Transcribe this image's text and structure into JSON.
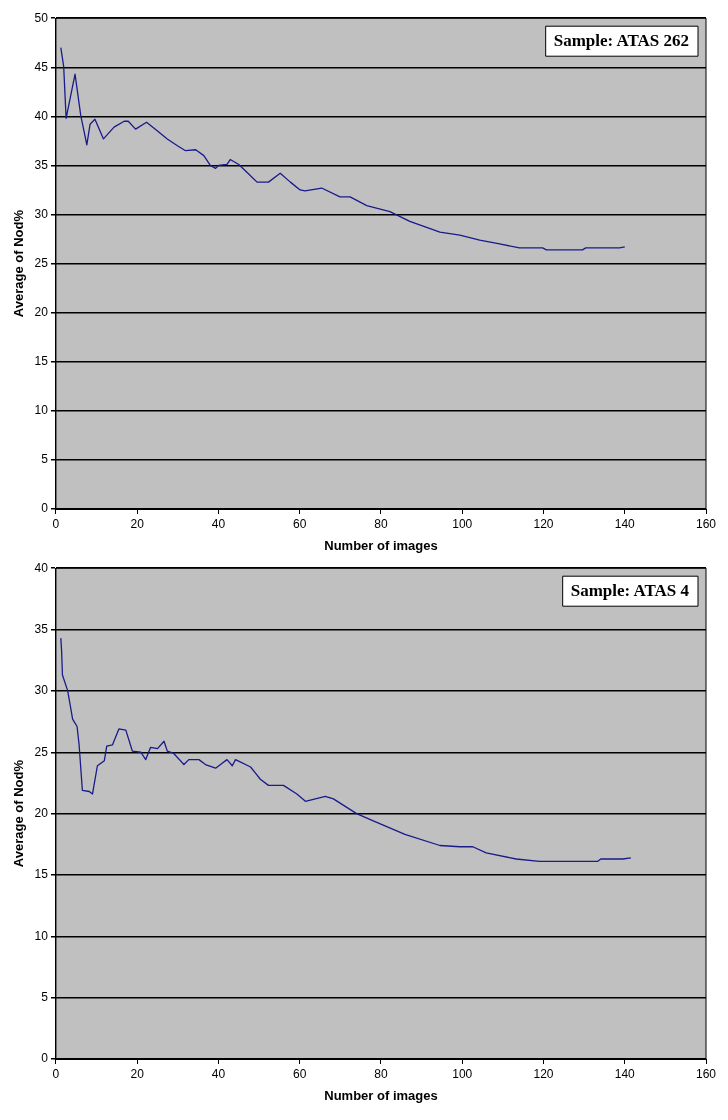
{
  "chart_data": [
    {
      "type": "line",
      "xlabel": "Number of images",
      "ylabel": "Average of Nod%",
      "annotations": [
        "Sample: ATAS 262"
      ],
      "color": "#1a1a8c",
      "marker": "none",
      "grid": "y",
      "xlim": [
        0,
        160
      ],
      "xticks": [
        0,
        20,
        40,
        60,
        80,
        100,
        120,
        140,
        160
      ],
      "ylim": [
        0,
        50
      ],
      "yticks": [
        0,
        5,
        10,
        15,
        20,
        25,
        30,
        35,
        40,
        45,
        50
      ],
      "x": [
        1.2,
        1.9,
        2.5,
        4.7,
        6.1,
        7.6,
        8.4,
        9.6,
        11.7,
        14.3,
        16.8,
        17.8,
        19.6,
        22.3,
        25,
        27.4,
        29.9,
        31.9,
        34.4,
        36.4,
        38,
        39.3,
        40,
        42.1,
        42.9,
        45,
        47,
        49.5,
        52.3,
        55.2,
        57.7,
        60.1,
        61.3,
        65.4,
        69.9,
        72.4,
        76.5,
        82.2,
        87.1,
        94.5,
        99.4,
        104.3,
        109.2,
        114.1,
        119.8,
        120.7,
        129.6,
        130.4,
        138.7,
        140
      ],
      "values": [
        47.0,
        45.1,
        39.8,
        44.3,
        40.1,
        37.1,
        39.2,
        39.7,
        37.7,
        38.9,
        39.5,
        39.5,
        38.7,
        39.4,
        38.5,
        37.7,
        37.0,
        36.5,
        36.6,
        36.0,
        35.0,
        34.7,
        35.0,
        35.1,
        35.6,
        35.1,
        34.3,
        33.3,
        33.3,
        34.2,
        33.3,
        32.5,
        32.4,
        32.7,
        31.8,
        31.8,
        30.9,
        30.3,
        29.3,
        28.2,
        27.9,
        27.4,
        27.0,
        26.6,
        26.6,
        26.4,
        26.4,
        26.6,
        26.6,
        26.7
      ]
    },
    {
      "type": "line",
      "xlabel": "Number of images",
      "ylabel": "Average of Nod%",
      "annotations": [
        "Sample: ATAS 4"
      ],
      "color": "#1a1a8c",
      "marker": "none",
      "grid": "y",
      "xlim": [
        0,
        160
      ],
      "xticks": [
        0,
        20,
        40,
        60,
        80,
        100,
        120,
        140,
        160
      ],
      "ylim": [
        0,
        40
      ],
      "yticks": [
        0,
        5,
        10,
        15,
        20,
        25,
        30,
        35,
        40
      ],
      "x": [
        1.2,
        1.4,
        1.6,
        2.9,
        4.1,
        5.2,
        5.7,
        6.5,
        8.2,
        9.0,
        10.2,
        11.9,
        12.5,
        13.9,
        15.5,
        17.2,
        18.8,
        20.9,
        22.1,
        23.3,
        25,
        26.6,
        27.4,
        29,
        31.5,
        32.7,
        35.2,
        36.8,
        39.3,
        42.1,
        43.4,
        44.2,
        47.9,
        50.3,
        52.3,
        56,
        59.3,
        61.4,
        66.3,
        68.3,
        74,
        78.1,
        85.9,
        94.5,
        99.4,
        102.6,
        105.9,
        113.3,
        119,
        122.3,
        133.3,
        134.1,
        139.5,
        141.5
      ],
      "values": [
        34.3,
        33.2,
        31.3,
        30.0,
        27.7,
        27.1,
        25.6,
        21.9,
        21.8,
        21.6,
        23.9,
        24.3,
        25.5,
        25.6,
        26.9,
        26.8,
        25.1,
        25.0,
        24.4,
        25.4,
        25.3,
        25.9,
        25.1,
        24.9,
        24.0,
        24.4,
        24.4,
        24.0,
        23.7,
        24.4,
        23.9,
        24.4,
        23.8,
        22.8,
        22.3,
        22.3,
        21.6,
        21.0,
        21.4,
        21.2,
        20.0,
        19.4,
        18.3,
        17.4,
        17.3,
        17.3,
        16.8,
        16.3,
        16.1,
        16.1,
        16.1,
        16.3,
        16.3,
        16.4
      ]
    }
  ]
}
